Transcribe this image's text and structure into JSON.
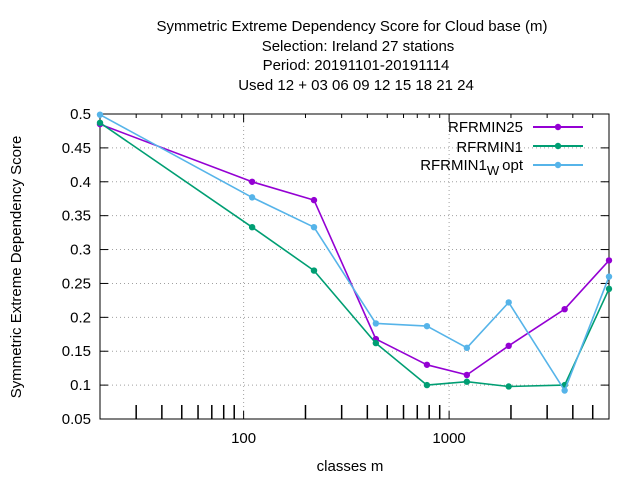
{
  "chart_data": {
    "type": "line",
    "title_lines": [
      "Symmetric Extreme Dependency Score  for Cloud base (m)",
      "Selection: Ireland     27 stations",
      "Period: 20191101-20191114",
      "Used  12 + 03 06 09 12 15 18 21 24"
    ],
    "xlabel": "classes m",
    "ylabel": "Symmetric Extreme Dependency Score",
    "x_scale": "log",
    "xlim": [
      20,
      6000
    ],
    "ylim": [
      0.05,
      0.5
    ],
    "x_ticks": [
      100,
      1000
    ],
    "x_tick_labels": [
      "100",
      "1000"
    ],
    "y_ticks": [
      0.05,
      0.1,
      0.15,
      0.2,
      0.25,
      0.3,
      0.35,
      0.4,
      0.45,
      0.5
    ],
    "y_tick_labels": [
      "0.05",
      "0.1",
      "0.15",
      "0.2",
      "0.25",
      "0.3",
      "0.35",
      "0.4",
      "0.45",
      "0.5"
    ],
    "grid": true,
    "legend_position": "top-right",
    "series": [
      {
        "name": "RFRMIN25",
        "color": "#9400d3",
        "x": [
          20,
          110,
          220,
          440,
          780,
          1220,
          1950,
          3650,
          6000
        ],
        "y": [
          0.485,
          0.4,
          0.373,
          0.168,
          0.13,
          0.115,
          0.158,
          0.212,
          0.284
        ]
      },
      {
        "name": "RFRMIN1",
        "color": "#009e73",
        "x": [
          20,
          110,
          220,
          440,
          780,
          1220,
          1950,
          3650,
          6000
        ],
        "y": [
          0.487,
          0.333,
          0.269,
          0.162,
          0.1,
          0.105,
          0.098,
          0.1,
          0.242
        ]
      },
      {
        "name": "RFRMIN1",
        "name_subscript": "W",
        "name_suffix": "opt",
        "color": "#56b4e9",
        "x": [
          20,
          110,
          220,
          440,
          780,
          1220,
          1950,
          3650,
          6000
        ],
        "y": [
          0.499,
          0.377,
          0.333,
          0.191,
          0.187,
          0.155,
          0.222,
          0.092,
          0.26
        ]
      }
    ]
  }
}
